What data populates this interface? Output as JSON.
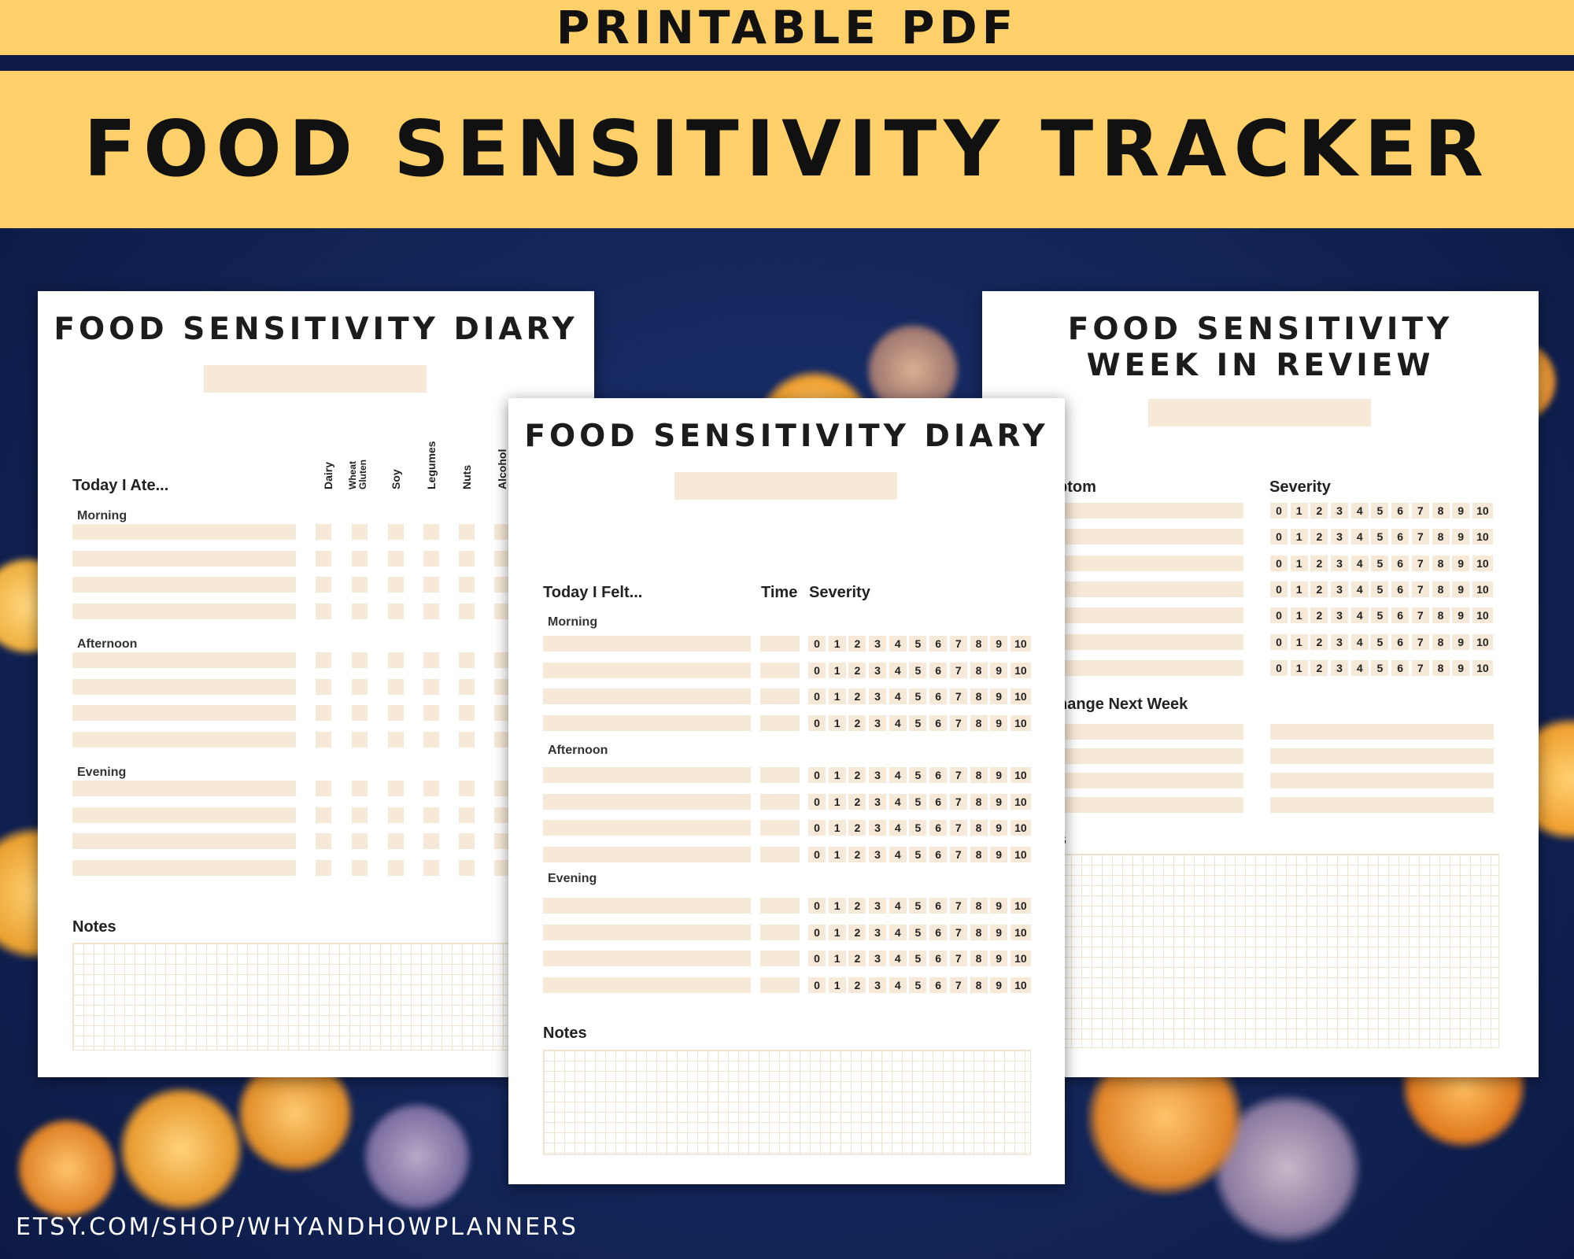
{
  "banner": {
    "top_label": "PRINTABLE PDF",
    "title": "FOOD SENSITIVITY TRACKER"
  },
  "footer": {
    "url": "ETSY.COM/SHOP/WHYANDHOWPLANNERS"
  },
  "colors": {
    "banner": "#fdd06a",
    "background": "#14275c",
    "field": "#f7e9d7",
    "page": "#ffffff"
  },
  "page_left": {
    "title": "FOOD SENSITIVITY DIARY",
    "section_header": "Today I Ate...",
    "columns": [
      "Dairy",
      "Wheat Gluten",
      "Soy",
      "Legumes",
      "Nuts",
      "Alcohol"
    ],
    "periods": [
      "Morning",
      "Afternoon",
      "Evening"
    ],
    "notes_label": "Notes"
  },
  "page_center": {
    "title": "FOOD SENSITIVITY DIARY",
    "section_header": "Today I Felt...",
    "time_header": "Time",
    "severity_header": "Severity",
    "periods": [
      "Morning",
      "Afternoon",
      "Evening"
    ],
    "severity_scale": [
      "0",
      "1",
      "2",
      "3",
      "4",
      "5",
      "6",
      "7",
      "8",
      "9",
      "10"
    ],
    "notes_label": "Notes"
  },
  "page_right": {
    "title_line1": "FOOD SENSITIVITY",
    "title_line2": "WEEK IN REVIEW",
    "symptom_header": "ptom",
    "severity_header": "Severity",
    "change_header": "hange Next Week",
    "notes_label": "s",
    "severity_scale": [
      "0",
      "1",
      "2",
      "3",
      "4",
      "5",
      "6",
      "7",
      "8",
      "9",
      "10"
    ]
  }
}
